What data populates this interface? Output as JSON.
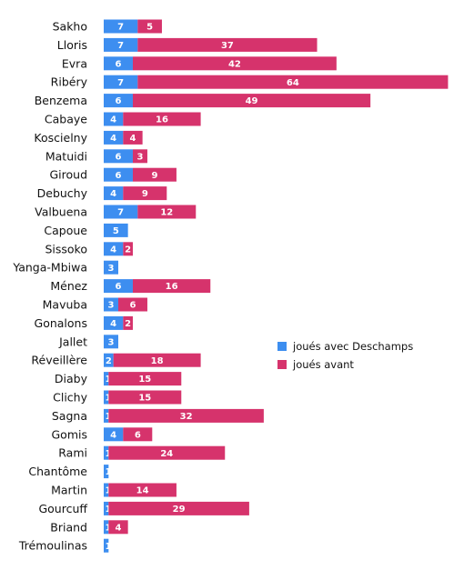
{
  "chart_data": {
    "type": "bar",
    "orientation": "horizontal",
    "stacked": true,
    "title": "",
    "xlabel": "",
    "ylabel": "",
    "xlim": [
      0,
      74
    ],
    "grid": false,
    "legend_position": "right",
    "categories": [
      "Sakho",
      "Lloris",
      "Evra",
      "Ribéry",
      "Benzema",
      "Cabaye",
      "Koscielny",
      "Matuidi",
      "Giroud",
      "Debuchy",
      "Valbuena",
      "Capoue",
      "Sissoko",
      "Yanga-Mbiwa",
      "Ménez",
      "Mavuba",
      "Gonalons",
      "Jallet",
      "Réveillère",
      "Diaby",
      "Clichy",
      "Sagna",
      "Gomis",
      "Rami",
      "Chantôme",
      "Martin",
      "Gourcuff",
      "Briand",
      "Trémoulinas"
    ],
    "series": [
      {
        "name": "joués avec Deschamps",
        "color": "#3d8ef0",
        "values": [
          7,
          7,
          6,
          7,
          6,
          4,
          4,
          6,
          6,
          4,
          7,
          5,
          4,
          3,
          6,
          3,
          4,
          3,
          2,
          1,
          1,
          1,
          4,
          1,
          1,
          1,
          1,
          1,
          1
        ]
      },
      {
        "name": "joués avant",
        "color": "#d6336c",
        "values": [
          5,
          37,
          42,
          64,
          49,
          16,
          4,
          3,
          9,
          9,
          12,
          0,
          2,
          0,
          16,
          6,
          2,
          0,
          18,
          15,
          15,
          32,
          6,
          24,
          0,
          14,
          29,
          4,
          0
        ]
      }
    ]
  }
}
